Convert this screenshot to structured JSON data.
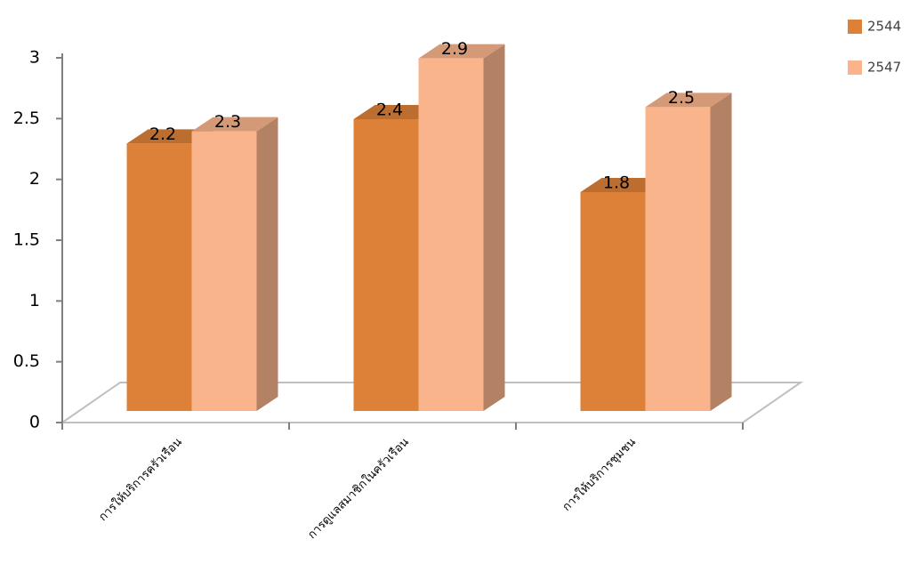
{
  "chart_data": {
    "type": "bar3d",
    "categories": [
      "การให้บริการครัวเรือน",
      "การดูแลสมาชิกในครัวเรือน",
      "การให้บริการชุมชน"
    ],
    "series": [
      {
        "name": "2544",
        "color": "#dd8038",
        "values": [
          2.2,
          2.4,
          1.8
        ]
      },
      {
        "name": "2547",
        "color": "#f9b48c",
        "values": [
          2.3,
          2.9,
          2.5
        ]
      }
    ],
    "ylim": [
      0,
      3
    ],
    "yticks": [
      0,
      0.5,
      1,
      1.5,
      2,
      2.5,
      3
    ],
    "legend": "top-right"
  }
}
